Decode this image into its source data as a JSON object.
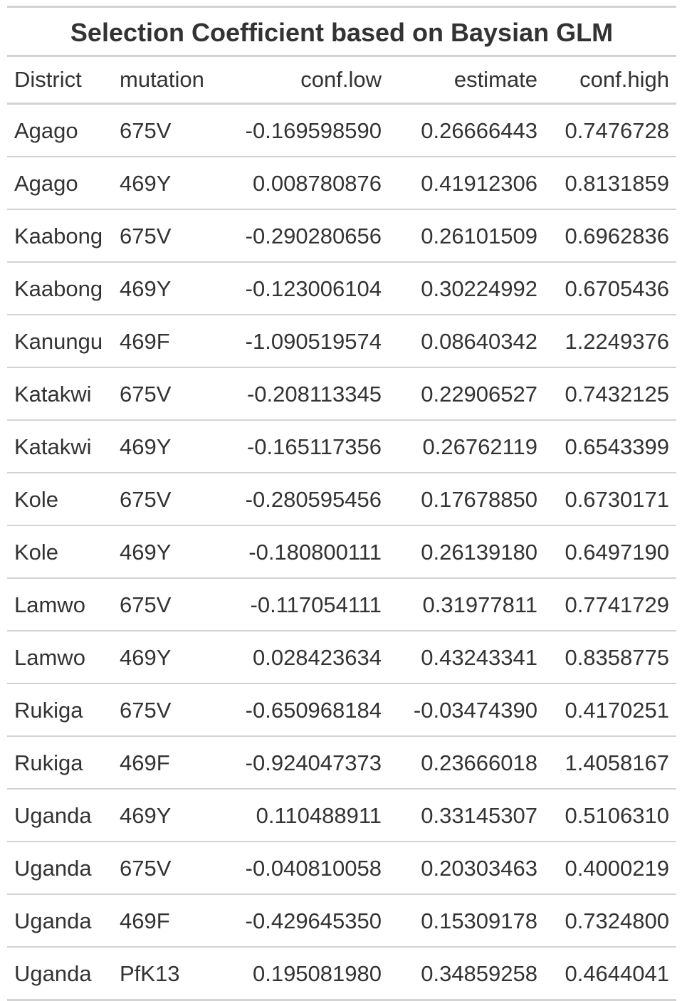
{
  "table": {
    "title": "Selection Coefficient based on Baysian GLM",
    "columns": [
      "District",
      "mutation",
      "conf.low",
      "estimate",
      "conf.high"
    ],
    "rows": [
      [
        "Agago",
        "675V",
        "-0.169598590",
        "0.26666443",
        "0.7476728"
      ],
      [
        "Agago",
        "469Y",
        "0.008780876",
        "0.41912306",
        "0.8131859"
      ],
      [
        "Kaabong",
        "675V",
        "-0.290280656",
        "0.26101509",
        "0.6962836"
      ],
      [
        "Kaabong",
        "469Y",
        "-0.123006104",
        "0.30224992",
        "0.6705436"
      ],
      [
        "Kanungu",
        "469F",
        "-1.090519574",
        "0.08640342",
        "1.2249376"
      ],
      [
        "Katakwi",
        "675V",
        "-0.208113345",
        "0.22906527",
        "0.7432125"
      ],
      [
        "Katakwi",
        "469Y",
        "-0.165117356",
        "0.26762119",
        "0.6543399"
      ],
      [
        "Kole",
        "675V",
        "-0.280595456",
        "0.17678850",
        "0.6730171"
      ],
      [
        "Kole",
        "469Y",
        "-0.180800111",
        "0.26139180",
        "0.6497190"
      ],
      [
        "Lamwo",
        "675V",
        "-0.117054111",
        "0.31977811",
        "0.7741729"
      ],
      [
        "Lamwo",
        "469Y",
        "0.028423634",
        "0.43243341",
        "0.8358775"
      ],
      [
        "Rukiga",
        "675V",
        "-0.650968184",
        "-0.03474390",
        "0.4170251"
      ],
      [
        "Rukiga",
        "469F",
        "-0.924047373",
        "0.23666018",
        "1.4058167"
      ],
      [
        "Uganda",
        "469Y",
        "0.110488911",
        "0.33145307",
        "0.5106310"
      ],
      [
        "Uganda",
        "675V",
        "-0.040810058",
        "0.20303463",
        "0.4000219"
      ],
      [
        "Uganda",
        "469F",
        "-0.429645350",
        "0.15309178",
        "0.7324800"
      ],
      [
        "Uganda",
        "PfK13",
        "0.195081980",
        "0.34859258",
        "0.4644041"
      ]
    ]
  },
  "colors": {
    "text": "#333333",
    "rule": "#d3d3d3",
    "background": "#ffffff"
  }
}
